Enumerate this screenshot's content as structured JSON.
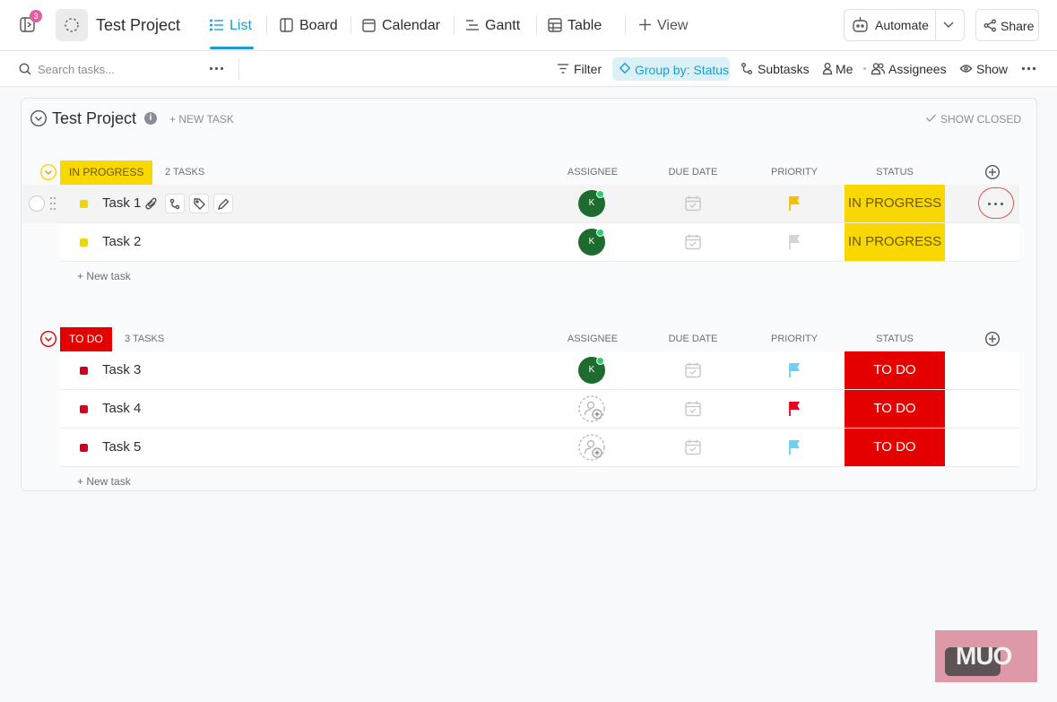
{
  "topbar": {
    "badge": "3",
    "project": "Test Project",
    "views": [
      "List",
      "Board",
      "Calendar",
      "Gantt",
      "Table"
    ],
    "add_view": "View",
    "automate": "Automate",
    "share": "Share"
  },
  "toolbar": {
    "search_placeholder": "Search tasks...",
    "filter": "Filter",
    "group_by": "Group by: Status",
    "subtasks": "Subtasks",
    "me": "Me",
    "assignees": "Assignees",
    "show": "Show"
  },
  "project": {
    "title": "Test Project",
    "new_task": "+ NEW TASK",
    "show_closed": "SHOW CLOSED"
  },
  "columns": [
    "ASSIGNEE",
    "DUE DATE",
    "PRIORITY",
    "STATUS"
  ],
  "groups": [
    {
      "status": "IN PROGRESS",
      "count": "2 TASKS",
      "color": "#f8d800",
      "text_color": "#6b5800",
      "tasks": [
        {
          "name": "Task 1",
          "assignee": "K",
          "priority_color": "#f5c000",
          "status": "IN PROGRESS"
        },
        {
          "name": "Task 2",
          "assignee": "K",
          "priority_color": "#d4d4d4",
          "status": "IN PROGRESS"
        }
      ],
      "new_task": "+ New task"
    },
    {
      "status": "TO DO",
      "count": "3 TASKS",
      "color": "#e50000",
      "text_color": "#ffffff",
      "tasks": [
        {
          "name": "Task 3",
          "assignee": "K",
          "priority_color": "#6ccff3",
          "status": "TO DO"
        },
        {
          "name": "Task 4",
          "priority_color": "#e5001e",
          "status": "TO DO"
        },
        {
          "name": "Task 5",
          "priority_color": "#6ccff3",
          "status": "TO DO"
        }
      ],
      "new_task": "+ New task"
    }
  ],
  "watermark": "MUO"
}
